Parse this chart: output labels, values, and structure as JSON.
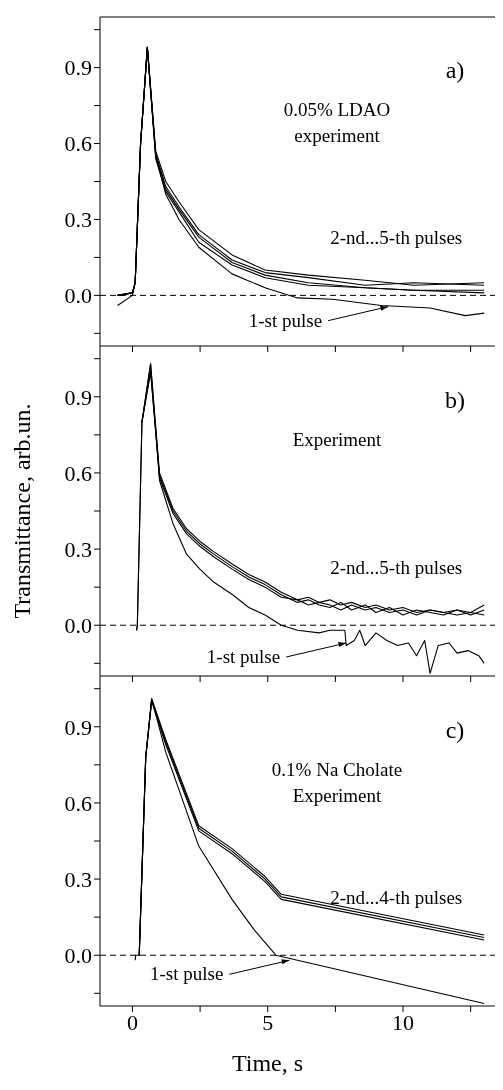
{
  "chart_data": [
    {
      "type": "line",
      "xlim": [
        -1.2,
        13.4
      ],
      "ylim": [
        -0.2,
        1.1
      ],
      "tick_labels": "y",
      "marker": "none",
      "xticks": [
        0,
        {
          "value": 2.5,
          "label": null
        },
        5,
        {
          "value": 7.5,
          "label": null
        },
        10,
        {
          "value": 12.5,
          "label": null
        }
      ],
      "yticks": [
        {
          "value": -0.15,
          "label": null
        },
        {
          "value": 0,
          "label": "0.0"
        },
        {
          "value": 0.15,
          "label": null
        },
        0.3,
        {
          "value": 0.45,
          "label": null
        },
        0.6,
        {
          "value": 0.75,
          "label": null
        },
        0.9,
        {
          "value": 1.05,
          "label": null
        }
      ],
      "ref_lines": [
        {
          "axis": "y",
          "value": 0,
          "line_style": "dashed",
          "color": "#000000"
        }
      ],
      "annotations": [
        "a)",
        "0.05% LDAO",
        "experiment",
        "2-nd...5-th pulses",
        {
          "text": "1-st pulse",
          "x": 9.45,
          "y": -0.045
        }
      ],
      "series": [
        {
          "color": "#000000",
          "x": [
            -0.55,
            0.0,
            0.1,
            0.3,
            0.55,
            0.86,
            1.23,
            1.72,
            2.45,
            3.68,
            4.9,
            6.5,
            8.6,
            10.4,
            13.0
          ],
          "values": [
            0,
            0.01,
            0.05,
            0.6,
            0.98,
            0.57,
            0.45,
            0.37,
            0.26,
            0.16,
            0.1,
            0.08,
            0.06,
            0.04,
            0.05
          ]
        },
        {
          "color": "#000000",
          "x": [
            -0.55,
            0.0,
            0.1,
            0.3,
            0.55,
            0.86,
            1.23,
            1.72,
            2.45,
            3.68,
            4.9,
            6.5,
            8.6,
            10.4,
            13.0
          ],
          "values": [
            0,
            0.01,
            0.05,
            0.6,
            0.98,
            0.56,
            0.43,
            0.35,
            0.24,
            0.14,
            0.09,
            0.07,
            0.04,
            0.05,
            0.04
          ]
        },
        {
          "color": "#000000",
          "x": [
            -0.55,
            0.0,
            0.1,
            0.3,
            0.55,
            0.86,
            1.23,
            1.72,
            2.45,
            3.68,
            4.9,
            6.5,
            8.6,
            10.4,
            13.0
          ],
          "values": [
            0,
            0.01,
            0.05,
            0.6,
            0.98,
            0.55,
            0.42,
            0.34,
            0.23,
            0.13,
            0.08,
            0.05,
            0.03,
            0.02,
            0.02
          ]
        },
        {
          "color": "#000000",
          "x": [
            -0.55,
            0.0,
            0.1,
            0.3,
            0.55,
            0.86,
            1.23,
            1.72,
            2.45,
            3.68,
            4.9,
            6.5,
            8.6,
            10.4,
            13.0
          ],
          "values": [
            0,
            0.01,
            0.05,
            0.6,
            0.98,
            0.54,
            0.41,
            0.33,
            0.21,
            0.12,
            0.07,
            0.04,
            0.03,
            0.02,
            0.01
          ]
        },
        {
          "color": "#000000",
          "x": [
            -0.55,
            0.0,
            0.1,
            0.3,
            0.55,
            0.86,
            1.23,
            1.72,
            2.45,
            3.68,
            4.9,
            6.1,
            7.4,
            9.2,
            11.0,
            12.3,
            13.0
          ],
          "values": [
            -0.04,
            0.0,
            0.05,
            0.6,
            0.98,
            0.55,
            0.4,
            0.3,
            0.19,
            0.085,
            0.03,
            -0.01,
            -0.015,
            -0.04,
            -0.05,
            -0.08,
            -0.07
          ]
        }
      ]
    },
    {
      "type": "line",
      "xlim": [
        -1.2,
        13.4
      ],
      "ylim": [
        -0.2,
        1.1
      ],
      "tick_labels": "y",
      "marker": "none",
      "ylabel": "Transmittance, arb.un.",
      "xticks": [
        0,
        {
          "value": 2.5,
          "label": null
        },
        5,
        {
          "value": 7.5,
          "label": null
        },
        10,
        {
          "value": 12.5,
          "label": null
        }
      ],
      "yticks": [
        {
          "value": -0.15,
          "label": null
        },
        {
          "value": 0,
          "label": "0.0"
        },
        {
          "value": 0.15,
          "label": null
        },
        0.3,
        {
          "value": 0.45,
          "label": null
        },
        0.6,
        {
          "value": 0.75,
          "label": null
        },
        0.9,
        {
          "value": 1.05,
          "label": null
        }
      ],
      "ref_lines": [
        {
          "axis": "y",
          "value": 0,
          "line_style": "dashed",
          "color": "#000000"
        }
      ],
      "annotations": [
        "b)",
        "Experiment",
        "2-nd...5-th pulses",
        {
          "text": "1-st pulse",
          "x": 7.9,
          "y": -0.07
        }
      ],
      "series": [
        {
          "color": "#000000",
          "x": [
            0.15,
            0.18,
            0.35,
            0.67,
            1.0,
            1.5,
            2.0,
            2.5,
            3.0,
            3.7,
            4.3,
            4.9,
            5.5,
            6.1,
            6.5,
            6.9,
            7.3,
            7.7,
            8.1,
            8.6,
            9.0,
            9.5,
            10.0,
            10.5,
            11.0,
            11.5,
            12.0,
            12.5,
            13.0
          ],
          "values": [
            -0.02,
            0.0,
            0.8,
            1.03,
            0.6,
            0.46,
            0.38,
            0.33,
            0.29,
            0.24,
            0.2,
            0.17,
            0.13,
            0.1,
            0.11,
            0.09,
            0.1,
            0.08,
            0.09,
            0.07,
            0.08,
            0.06,
            0.07,
            0.05,
            0.06,
            0.05,
            0.06,
            0.05,
            0.08
          ]
        },
        {
          "color": "#000000",
          "x": [
            0.35,
            0.67,
            1.0,
            1.5,
            2.0,
            2.5,
            3.0,
            3.7,
            4.3,
            4.9,
            5.5,
            6.1,
            6.5,
            6.9,
            7.3,
            7.7,
            8.1,
            8.6,
            9.0,
            9.5,
            10.0,
            10.5,
            11.0,
            11.5,
            12.0,
            12.5,
            13.0
          ],
          "values": [
            0.8,
            1.0,
            0.59,
            0.45,
            0.37,
            0.32,
            0.28,
            0.23,
            0.19,
            0.16,
            0.12,
            0.09,
            0.1,
            0.08,
            0.07,
            0.09,
            0.06,
            0.08,
            0.05,
            0.07,
            0.04,
            0.06,
            0.05,
            0.04,
            0.06,
            0.04,
            0.06
          ]
        },
        {
          "color": "#000000",
          "x": [
            0.35,
            0.67,
            1.0,
            1.5,
            2.0,
            2.5,
            3.0,
            3.7,
            4.3,
            4.9,
            5.5,
            6.1,
            6.5,
            6.9,
            7.3,
            7.7,
            8.1,
            8.6,
            9.0,
            9.5,
            10.0,
            10.5,
            11.0,
            11.5,
            12.0,
            12.5,
            13.0
          ],
          "values": [
            0.8,
            1.0,
            0.58,
            0.44,
            0.36,
            0.31,
            0.27,
            0.22,
            0.18,
            0.15,
            0.11,
            0.1,
            0.08,
            0.09,
            0.08,
            0.06,
            0.08,
            0.06,
            0.07,
            0.05,
            0.06,
            0.04,
            0.06,
            0.05,
            0.04,
            0.05,
            0.04
          ]
        },
        {
          "color": "#000000",
          "x": [
            0.15,
            0.18,
            0.35,
            0.67,
            1.0,
            1.5,
            2.0,
            2.5,
            3.0,
            3.7,
            4.3,
            4.9,
            5.5,
            6.1,
            6.9,
            7.3,
            7.85,
            7.9,
            8.2,
            8.4,
            8.6,
            9.0,
            9.4,
            9.8,
            10.2,
            10.5,
            10.8,
            11.0,
            11.3,
            11.7,
            12.0,
            12.4,
            12.8,
            13.0
          ],
          "values": [
            -0.02,
            0.0,
            0.8,
            1.03,
            0.57,
            0.4,
            0.28,
            0.22,
            0.17,
            0.12,
            0.07,
            0.04,
            0.0,
            -0.02,
            -0.03,
            -0.02,
            -0.02,
            -0.08,
            -0.06,
            -0.02,
            -0.08,
            -0.03,
            -0.06,
            -0.08,
            -0.07,
            -0.12,
            -0.06,
            -0.19,
            -0.08,
            -0.07,
            -0.11,
            -0.1,
            -0.12,
            -0.15
          ]
        }
      ]
    },
    {
      "type": "line",
      "xlim": [
        -1.2,
        13.4
      ],
      "ylim": [
        -0.2,
        1.1
      ],
      "marker": "none",
      "xlabel": "Time, s",
      "xticks": [
        0,
        {
          "value": 2.5,
          "label": null
        },
        5,
        {
          "value": 7.5,
          "label": null
        },
        10,
        {
          "value": 12.5,
          "label": null
        }
      ],
      "yticks": [
        {
          "value": -0.15,
          "label": null
        },
        {
          "value": 0,
          "label": "0.0"
        },
        {
          "value": 0.15,
          "label": null
        },
        0.3,
        {
          "value": 0.45,
          "label": null
        },
        0.6,
        {
          "value": 0.75,
          "label": null
        },
        0.9,
        {
          "value": 1.05,
          "label": null
        }
      ],
      "ref_lines": [
        {
          "axis": "y",
          "value": 0,
          "line_style": "dashed",
          "color": "#000000"
        }
      ],
      "annotations": [
        "c)",
        "0.1% Na Cholate",
        "Experiment",
        "2-nd...4-th pulses",
        {
          "text": "1-st pulse",
          "x": 5.8,
          "y": -0.02
        }
      ],
      "series": [
        {
          "color": "#000000",
          "x": [
            0.1,
            0.12,
            0.25,
            0.49,
            0.71,
            1.23,
            2.45,
            3.68,
            4.9,
            5.5,
            13.0
          ],
          "values": [
            -0.02,
            0.0,
            0.0,
            0.78,
            1.01,
            0.85,
            0.51,
            0.42,
            0.31,
            0.24,
            0.08
          ]
        },
        {
          "color": "#000000",
          "x": [
            0.25,
            0.49,
            0.71,
            1.23,
            2.45,
            3.68,
            4.9,
            5.5,
            13.0
          ],
          "values": [
            0.0,
            0.78,
            1.01,
            0.84,
            0.5,
            0.41,
            0.3,
            0.23,
            0.07
          ]
        },
        {
          "color": "#000000",
          "x": [
            0.25,
            0.49,
            0.71,
            1.23,
            2.45,
            3.68,
            4.9,
            5.5,
            13.0
          ],
          "values": [
            0.0,
            0.78,
            1.0,
            0.83,
            0.49,
            0.4,
            0.29,
            0.22,
            0.06
          ]
        },
        {
          "color": "#000000",
          "x": [
            0.25,
            0.49,
            0.71,
            1.23,
            2.45,
            3.68,
            4.5,
            5.3,
            13.0
          ],
          "values": [
            0.0,
            0.78,
            1.01,
            0.8,
            0.43,
            0.22,
            0.1,
            0.0,
            -0.19
          ]
        }
      ]
    }
  ]
}
